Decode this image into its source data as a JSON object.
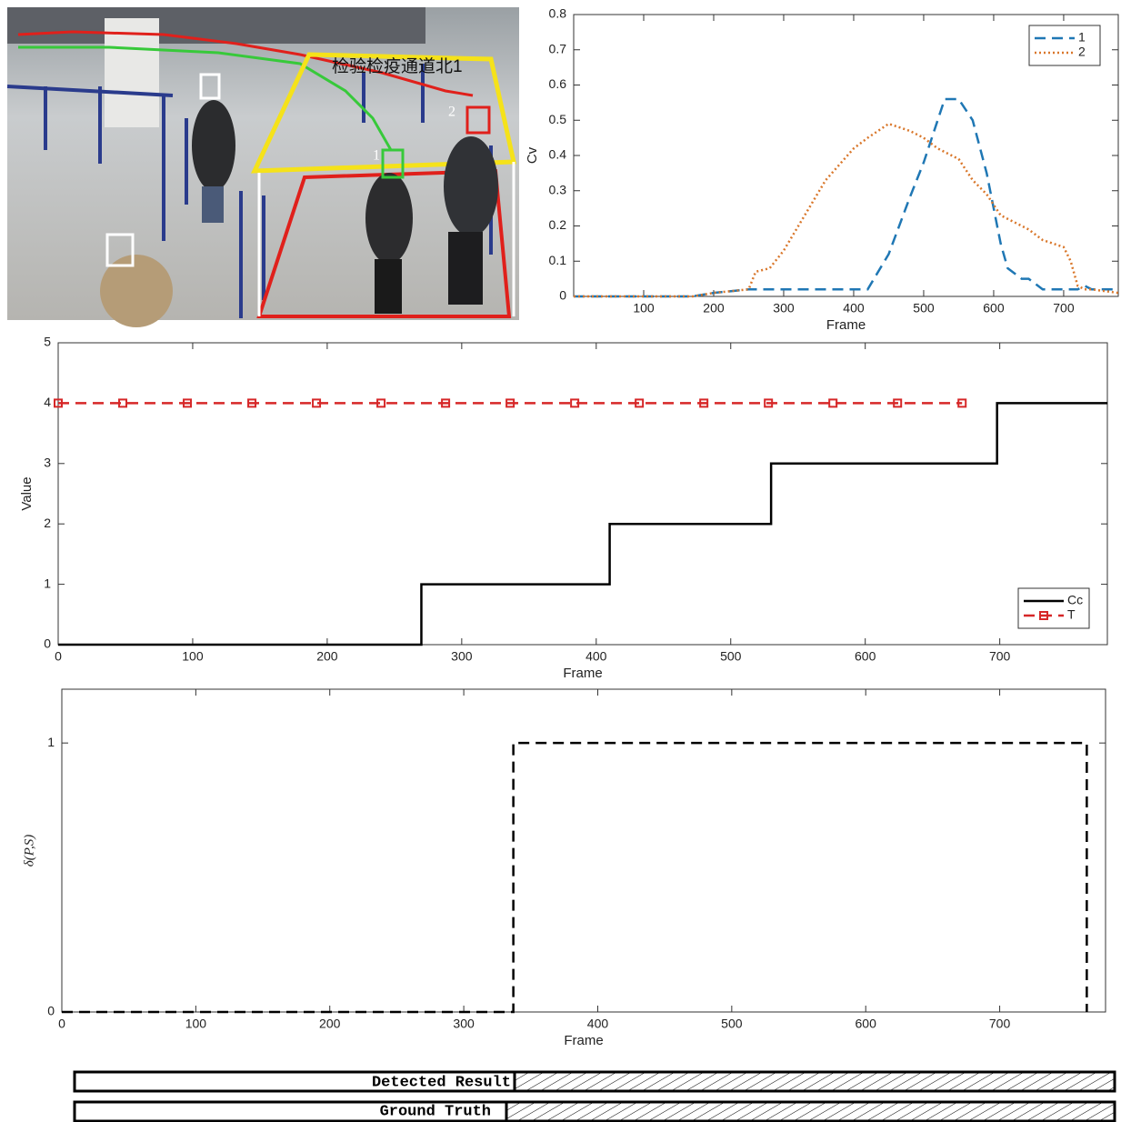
{
  "photo": {
    "sign": "检验检疫通道北1",
    "labels": [
      "1",
      "2"
    ]
  },
  "bars": {
    "detected": "Detected Result",
    "ground_truth": "Ground Truth"
  },
  "chart_data": [
    {
      "type": "line",
      "xlabel": "Frame",
      "ylabel": "Cv",
      "x": [
        0,
        100,
        170,
        200,
        250,
        260,
        280,
        300,
        330,
        360,
        400,
        420,
        450,
        480,
        500,
        520,
        530,
        550,
        570,
        590,
        610,
        620,
        640,
        650,
        670,
        700,
        710,
        720,
        730,
        740,
        778
      ],
      "series": [
        {
          "name": "1",
          "color": "#1f77b4",
          "style": "dashed",
          "values": [
            0,
            0,
            0,
            0.01,
            0.02,
            0.02,
            0.02,
            0.02,
            0.02,
            0.02,
            0.02,
            0.02,
            0.12,
            0.28,
            0.38,
            0.5,
            0.56,
            0.56,
            0.5,
            0.35,
            0.15,
            0.08,
            0.05,
            0.05,
            0.02,
            0.02,
            0.02,
            0.02,
            0.03,
            0.02,
            0.02
          ]
        },
        {
          "name": "2",
          "color": "#d9772b",
          "style": "dotted",
          "values": [
            0,
            0,
            0,
            0.01,
            0.02,
            0.07,
            0.08,
            0.13,
            0.23,
            0.33,
            0.42,
            0.45,
            0.49,
            0.47,
            0.45,
            0.42,
            0.41,
            0.39,
            0.33,
            0.29,
            0.23,
            0.22,
            0.2,
            0.19,
            0.16,
            0.14,
            0.1,
            0.03,
            0.02,
            0.02,
            0.01
          ]
        }
      ],
      "xlim": [
        0,
        778
      ],
      "ylim": [
        0,
        0.8
      ],
      "xticks": [
        100,
        200,
        300,
        400,
        500,
        600,
        700
      ],
      "yticks": [
        0,
        0.1,
        0.2,
        0.3,
        0.4,
        0.5,
        0.6,
        0.7,
        0.8
      ],
      "legend": "upper right"
    },
    {
      "type": "line",
      "xlabel": "Frame",
      "ylabel": "Value",
      "series": [
        {
          "name": "Cc",
          "color": "#000000",
          "style": "solid",
          "x": [
            0,
            270,
            270,
            410,
            410,
            530,
            530,
            698,
            698,
            780
          ],
          "values": [
            0,
            0,
            1,
            1,
            2,
            2,
            3,
            3,
            4,
            4
          ]
        },
        {
          "name": "T",
          "color": "#d62728",
          "style": "dashed",
          "marker": "square",
          "x": [
            0,
            48,
            96,
            144,
            192,
            240,
            288,
            336,
            384,
            432,
            480,
            528,
            576,
            624,
            672
          ],
          "values": [
            4,
            4,
            4,
            4,
            4,
            4,
            4,
            4,
            4,
            4,
            4,
            4,
            4,
            4,
            4
          ]
        }
      ],
      "xlim": [
        0,
        780
      ],
      "ylim": [
        0,
        5
      ],
      "xticks": [
        0,
        100,
        200,
        300,
        400,
        500,
        600,
        700
      ],
      "yticks": [
        0,
        1,
        2,
        3,
        4,
        5
      ],
      "legend": "lower right"
    },
    {
      "type": "line",
      "xlabel": "Frame",
      "ylabel": "δ(P,S)",
      "series": [
        {
          "color": "#000000",
          "style": "dashed",
          "x": [
            0,
            337,
            337,
            765,
            765
          ],
          "values": [
            0,
            0,
            1,
            1,
            0
          ]
        }
      ],
      "xlim": [
        0,
        779
      ],
      "ylim": [
        0,
        1.2
      ],
      "xticks": [
        0,
        100,
        200,
        300,
        400,
        500,
        600,
        700
      ],
      "yticks": [
        0,
        1
      ]
    }
  ]
}
